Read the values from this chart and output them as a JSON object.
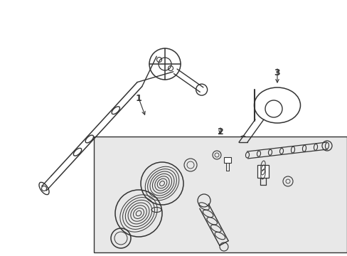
{
  "background_color": "#ffffff",
  "box_fill": "#e8e8e8",
  "line_color": "#333333",
  "fig_width": 4.89,
  "fig_height": 3.6,
  "dpi": 100,
  "label1": "1",
  "label2": "2",
  "label3": "3"
}
